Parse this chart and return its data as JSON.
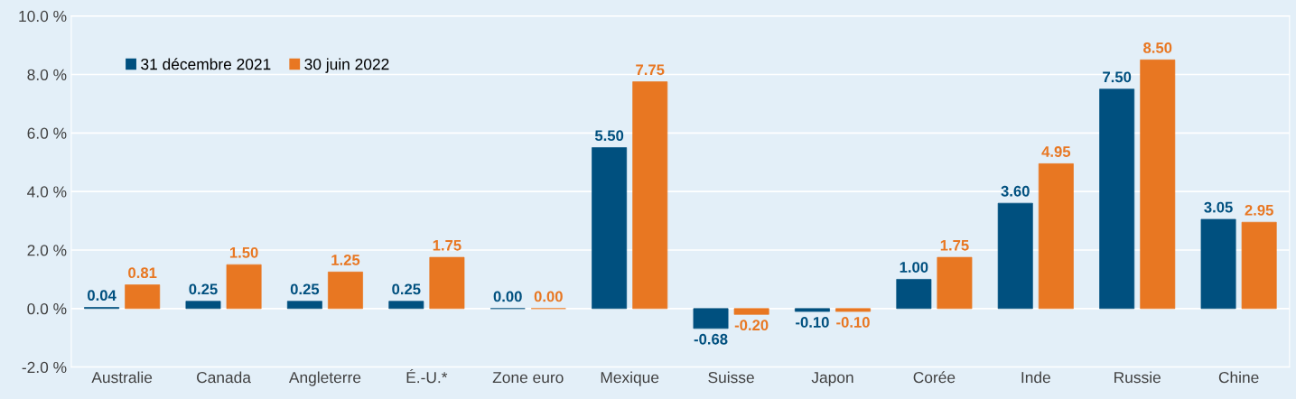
{
  "chart_data": {
    "type": "bar",
    "categories": [
      "Australie",
      "Canada",
      "Angleterre",
      "É.-U.*",
      "Zone euro",
      "Mexique",
      "Suisse",
      "Japon",
      "Corée",
      "Inde",
      "Russie",
      "Chine"
    ],
    "series": [
      {
        "name": "31 décembre 2021",
        "color": "#00507f",
        "values": [
          0.04,
          0.25,
          0.25,
          0.25,
          0.0,
          5.5,
          -0.68,
          -0.1,
          1.0,
          3.6,
          7.5,
          3.05
        ],
        "value_labels": [
          "0.04",
          "0.25",
          "0.25",
          "0.25",
          "0.00",
          "5.50",
          "-0.68",
          "-0.10",
          "1.00",
          "3.60",
          "7.50",
          "3.05"
        ]
      },
      {
        "name": "30 juin 2022",
        "color": "#e87722",
        "values": [
          0.81,
          1.5,
          1.25,
          1.75,
          0.0,
          7.75,
          -0.2,
          -0.1,
          1.75,
          4.95,
          8.5,
          2.95
        ],
        "value_labels": [
          "0.81",
          "1.50",
          "1.25",
          "1.75",
          "0.00",
          "7.75",
          "-0.20",
          "-0.10",
          "1.75",
          "4.95",
          "8.50",
          "2.95"
        ]
      }
    ],
    "ylim": [
      -2,
      10
    ],
    "yticks": [
      {
        "value": -2,
        "label": "-2.0 %"
      },
      {
        "value": 0,
        "label": "0.0 %"
      },
      {
        "value": 2,
        "label": "2.0 %"
      },
      {
        "value": 4,
        "label": "4.0 %"
      },
      {
        "value": 6,
        "label": "6.0 %"
      },
      {
        "value": 8,
        "label": "8.0 %"
      },
      {
        "value": 10,
        "label": "10.0 %"
      }
    ],
    "grid": "y",
    "legend": "top left"
  }
}
